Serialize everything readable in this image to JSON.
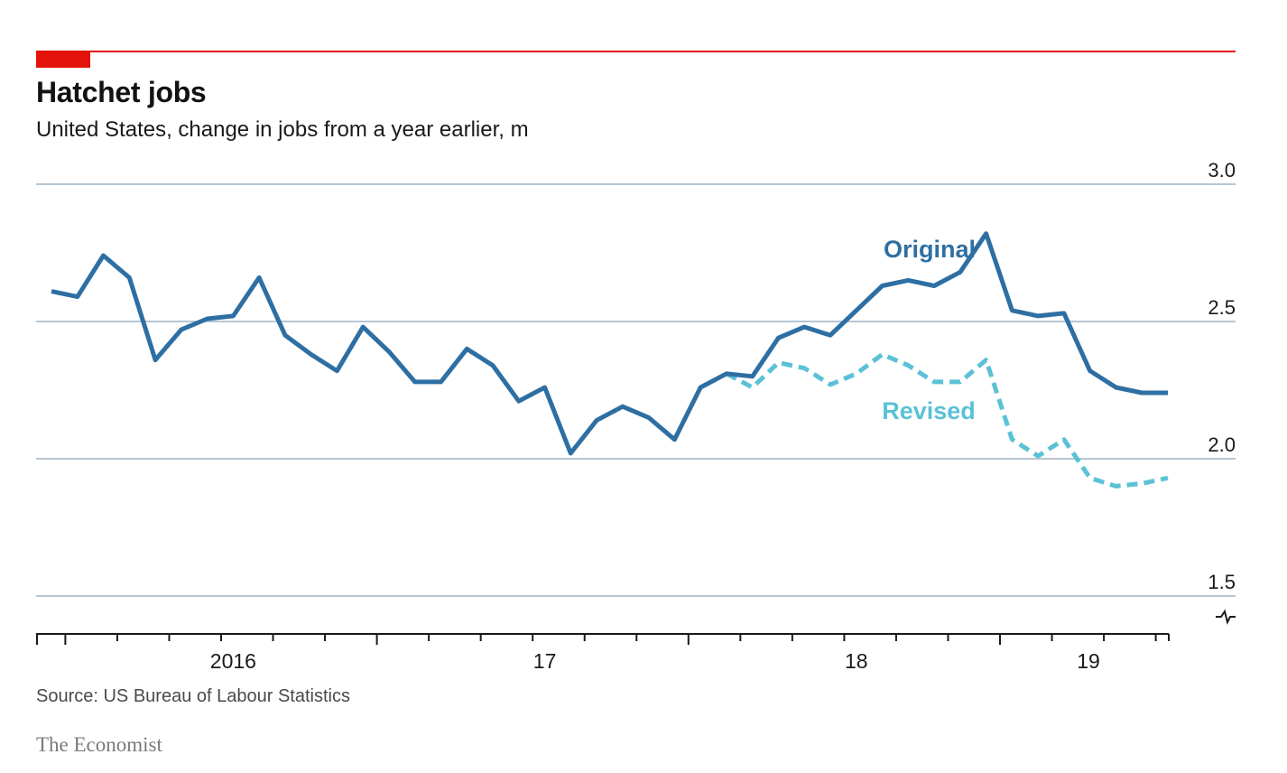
{
  "header": {
    "title": "Hatchet jobs",
    "subtitle": "United States, change in jobs from a year earlier, m"
  },
  "footer": {
    "source": "Source: US Bureau of Labour Statistics",
    "brand": "The Economist"
  },
  "colors": {
    "accent_red": "#e3120b",
    "original": "#2e6fa3",
    "revised": "#5bc1d6",
    "gridline": "#b7c6d3",
    "axis": "#1a1a1a"
  },
  "chart_data": {
    "type": "line",
    "title": "Hatchet jobs",
    "subtitle": "United States, change in jobs from a year earlier, m",
    "xlabel": "",
    "ylabel": "",
    "ylim": [
      1.5,
      3.0
    ],
    "y_ticks": [
      "3.0",
      "2.5",
      "2.0",
      "1.5"
    ],
    "x_tick_labels": [
      "2016",
      "17",
      "18",
      "19"
    ],
    "x_start": "2015-08",
    "x_end": "2019-03",
    "grid": true,
    "y_axis_side": "right",
    "x_label_positions": [
      "2016-03",
      "2017-03",
      "2018-03",
      "2019-03"
    ],
    "series": [
      {
        "name": "Original",
        "style": "solid",
        "x": [
          "2015-08",
          "2015-09",
          "2015-10",
          "2015-11",
          "2015-12",
          "2016-01",
          "2016-02",
          "2016-03",
          "2016-04",
          "2016-05",
          "2016-06",
          "2016-07",
          "2016-08",
          "2016-09",
          "2016-10",
          "2016-11",
          "2016-12",
          "2017-01",
          "2017-02",
          "2017-03",
          "2017-04",
          "2017-05",
          "2017-06",
          "2017-07",
          "2017-08",
          "2017-09",
          "2017-10",
          "2017-11",
          "2017-12",
          "2018-01",
          "2018-02",
          "2018-03",
          "2018-04",
          "2018-05",
          "2018-06",
          "2018-07",
          "2018-08",
          "2018-09",
          "2018-10",
          "2018-11",
          "2018-12",
          "2019-01",
          "2019-02",
          "2019-03"
        ],
        "values": [
          2.61,
          2.59,
          2.74,
          2.66,
          2.36,
          2.47,
          2.51,
          2.52,
          2.66,
          2.45,
          2.38,
          2.32,
          2.48,
          2.39,
          2.28,
          2.28,
          2.4,
          2.34,
          2.21,
          2.26,
          2.02,
          2.14,
          2.19,
          2.15,
          2.07,
          2.26,
          2.31,
          2.3,
          2.44,
          2.48,
          2.45,
          2.54,
          2.63,
          2.65,
          2.63,
          2.68,
          2.82,
          2.54,
          2.52,
          2.53,
          2.32,
          2.26,
          2.24,
          2.24
        ]
      },
      {
        "name": "Revised",
        "style": "dashed",
        "x": [
          "2017-10",
          "2017-11",
          "2017-12",
          "2018-01",
          "2018-02",
          "2018-03",
          "2018-04",
          "2018-05",
          "2018-06",
          "2018-07",
          "2018-08",
          "2018-09",
          "2018-10",
          "2018-11",
          "2018-12",
          "2019-01",
          "2019-02",
          "2019-03"
        ],
        "values": [
          2.31,
          2.26,
          2.35,
          2.33,
          2.27,
          2.31,
          2.38,
          2.34,
          2.28,
          2.28,
          2.36,
          2.07,
          2.01,
          2.07,
          1.93,
          1.9,
          1.91,
          1.93
        ]
      }
    ]
  }
}
